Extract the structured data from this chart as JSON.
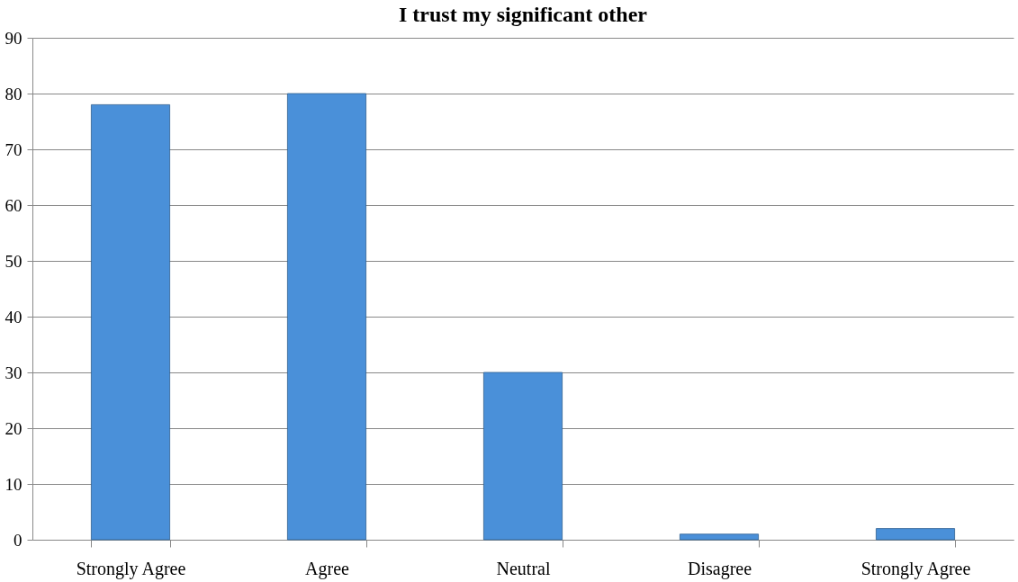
{
  "chart_data": {
    "type": "bar",
    "title": "I trust my significant other",
    "categories": [
      "Strongly Agree",
      "Agree",
      "Neutral",
      "Disagree",
      "Strongly Agree"
    ],
    "values": [
      78,
      80,
      30,
      1,
      2
    ],
    "color": "#4a90d9",
    "ylim": [
      0,
      90
    ],
    "yticks": [
      0,
      10,
      20,
      30,
      40,
      50,
      60,
      70,
      80,
      90
    ],
    "grid": "y"
  }
}
